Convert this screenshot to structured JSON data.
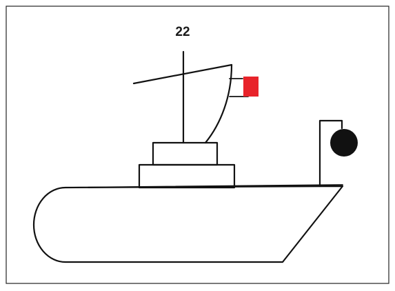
{
  "figure": {
    "number_label": "22",
    "colors": {
      "outline": "#111111",
      "flag": "#e8232a",
      "ball": "#111111",
      "border": "#222222",
      "background": "#ffffff"
    },
    "icons": [
      "boat-hull",
      "cabin",
      "mast",
      "sail",
      "flag",
      "black-ball-signal"
    ]
  }
}
